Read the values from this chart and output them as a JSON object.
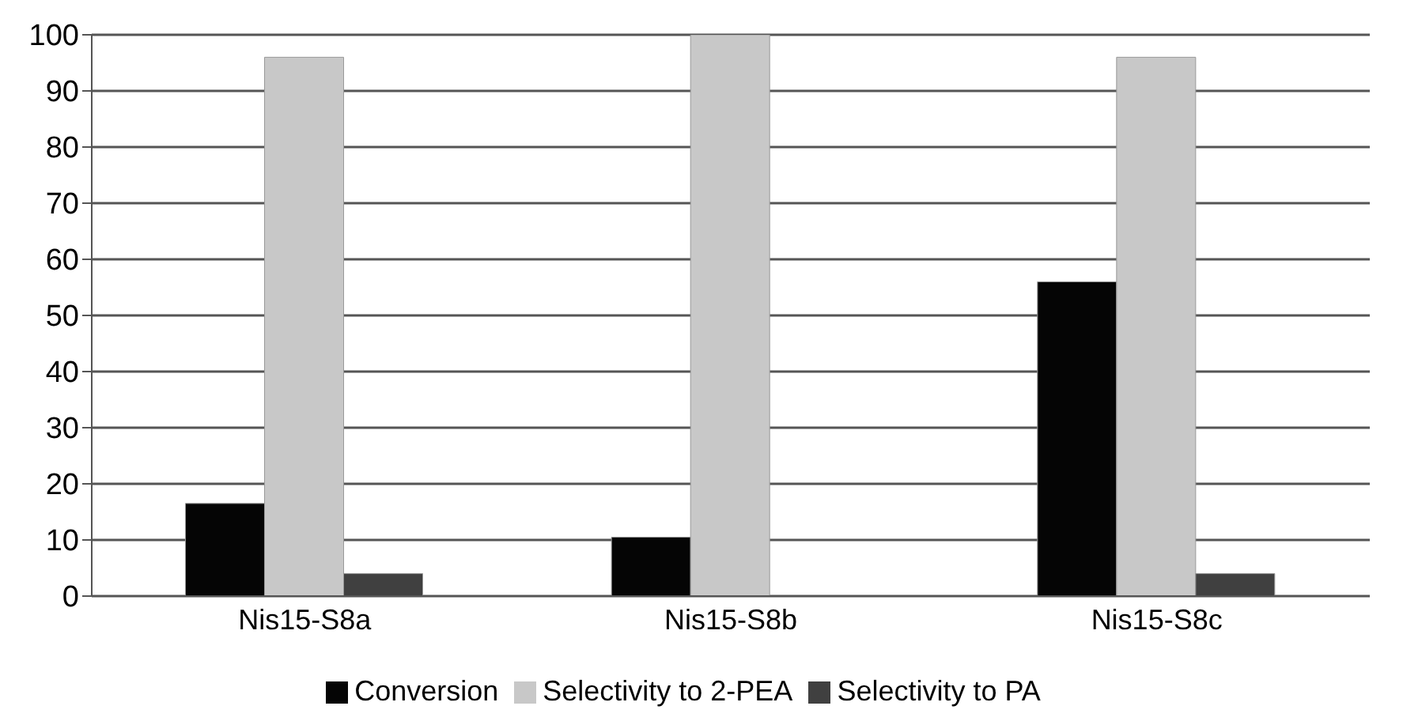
{
  "chart_data": {
    "type": "bar",
    "categories": [
      "Nis15-S8a",
      "Nis15-S8b",
      "Nis15-S8c"
    ],
    "series": [
      {
        "name": "Conversion",
        "color": "#050505",
        "values": [
          16.5,
          10.5,
          56
        ]
      },
      {
        "name": "Selectivity to 2-PEA",
        "color": "#c8c8c8",
        "values": [
          96,
          100,
          96
        ]
      },
      {
        "name": "Selectivity to PA",
        "color": "#404040",
        "values": [
          4,
          0,
          4
        ]
      }
    ],
    "ylim": [
      0,
      100
    ],
    "yticks": [
      0,
      10,
      20,
      30,
      40,
      50,
      60,
      70,
      80,
      90,
      100
    ],
    "grid": "y",
    "legend": "bottom"
  }
}
